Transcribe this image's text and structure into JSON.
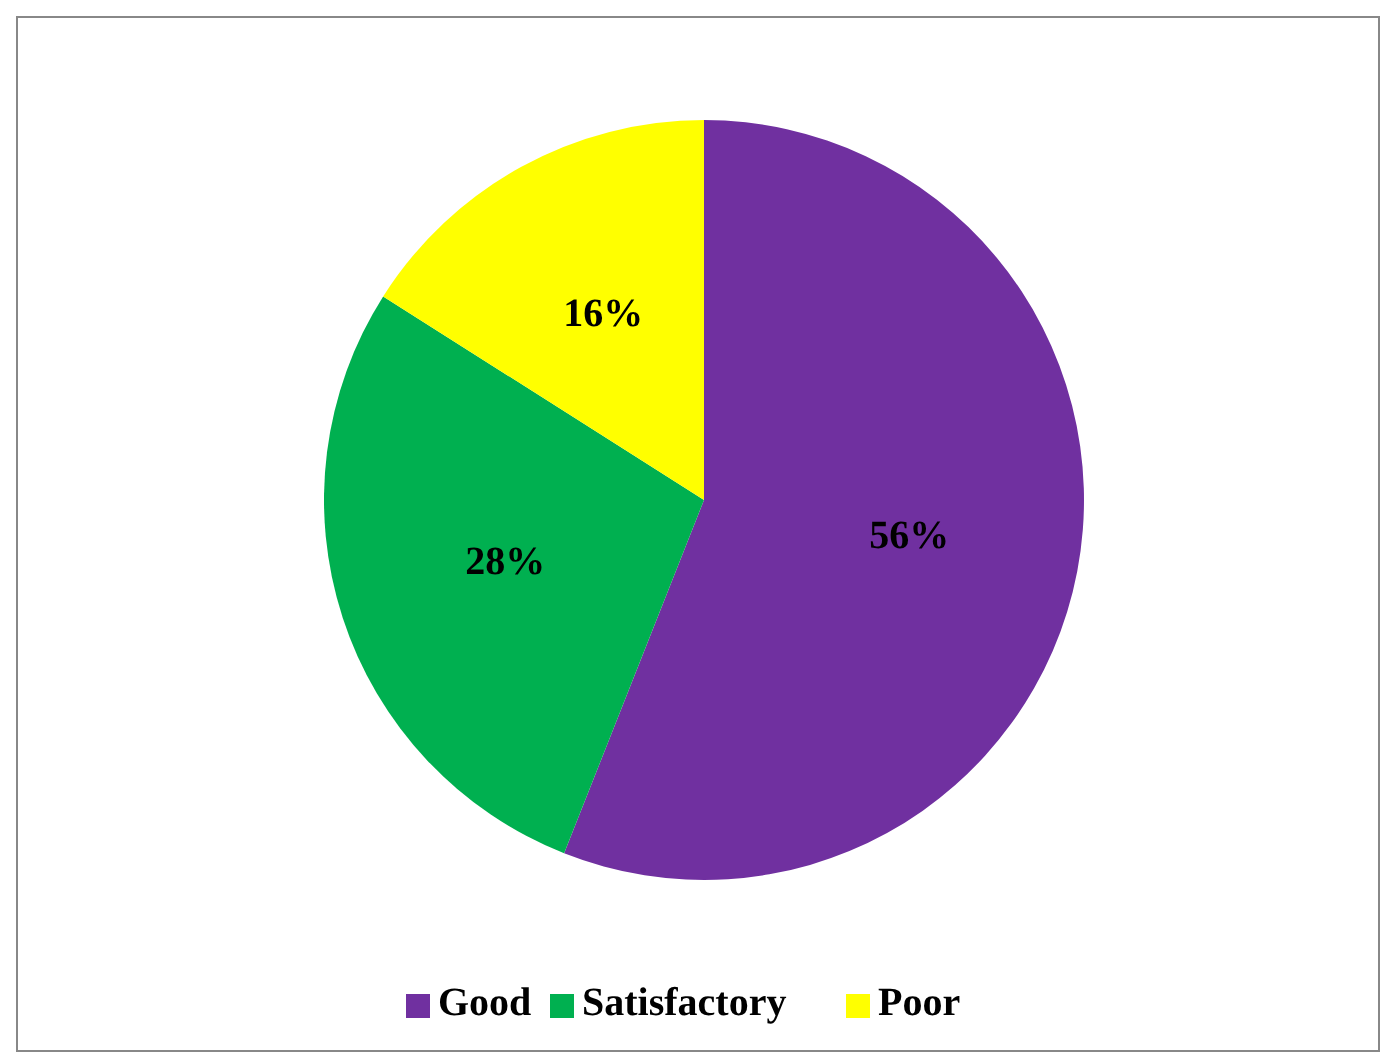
{
  "chart_data": {
    "type": "pie",
    "categories": [
      "Good",
      "Satisfactory",
      "Poor"
    ],
    "values": [
      56,
      28,
      16
    ],
    "colors": [
      "#7030a0",
      "#00b050",
      "#ffff00"
    ],
    "value_labels": [
      "56%",
      "28%",
      "16%"
    ],
    "legend": "bottom"
  }
}
